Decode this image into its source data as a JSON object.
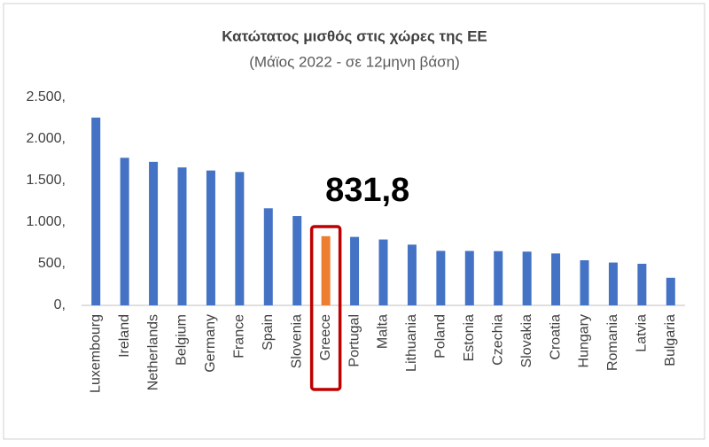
{
  "chart_data": {
    "type": "bar",
    "title": "Κατώτατος μισθός στις χώρες της ΕΕ",
    "subtitle": "(Μάϊος 2022 - σε 12μηνη βάση)",
    "categories": [
      "Luxembourg",
      "Ireland",
      "Netherlands",
      "Belgium",
      "Germany",
      "France",
      "Spain",
      "Slovenia",
      "Greece",
      "Portugal",
      "Malta",
      "Lithuania",
      "Poland",
      "Estonia",
      "Czechia",
      "Slovakia",
      "Croatia",
      "Hungary",
      "Romania",
      "Latvia",
      "Bulgaria"
    ],
    "values": [
      2257,
      1774,
      1725,
      1658,
      1621,
      1603,
      1167,
      1074,
      831.8,
      823,
      792,
      730,
      655,
      654,
      652,
      646,
      624,
      542,
      515,
      500,
      332
    ],
    "value_labels": [
      null,
      null,
      null,
      null,
      null,
      null,
      null,
      null,
      "831,8",
      null,
      null,
      null,
      null,
      null,
      null,
      null,
      null,
      null,
      null,
      null,
      null
    ],
    "colors": [
      "#4472c4",
      "#4472c4",
      "#4472c4",
      "#4472c4",
      "#4472c4",
      "#4472c4",
      "#4472c4",
      "#4472c4",
      "#ed7d31",
      "#4472c4",
      "#4472c4",
      "#4472c4",
      "#4472c4",
      "#4472c4",
      "#4472c4",
      "#4472c4",
      "#4472c4",
      "#4472c4",
      "#4472c4",
      "#4472c4",
      "#4472c4"
    ],
    "highlight_box_color": "#c00000",
    "ylim": [
      0,
      2500
    ],
    "yticks": [
      {
        "value": 0,
        "label": "0,"
      },
      {
        "value": 500,
        "label": "500,"
      },
      {
        "value": 1000,
        "label": "1.000,"
      },
      {
        "value": 1500,
        "label": "1.500,"
      },
      {
        "value": 2000,
        "label": "2.000,"
      },
      {
        "value": 2500,
        "label": "2.500,"
      }
    ],
    "grid": false
  }
}
